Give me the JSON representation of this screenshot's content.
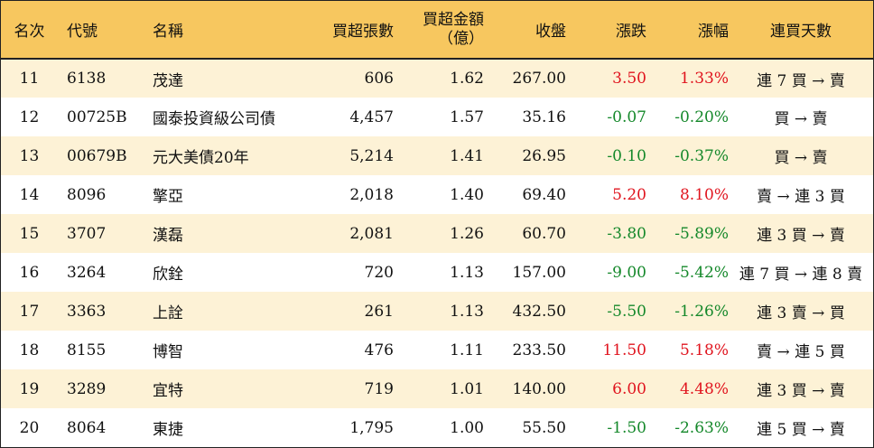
{
  "table": {
    "headers": {
      "rank": "名次",
      "code": "代號",
      "name": "名稱",
      "net_buy_volume": "買超張數",
      "net_buy_amount_line1": "買超金額",
      "net_buy_amount_line2": "（億）",
      "close": "收盤",
      "change": "漲跌",
      "change_pct": "漲幅",
      "consecutive_days": "連買天數"
    },
    "colors": {
      "header_bg": "#f7c75f",
      "odd_row_bg": "#fdf2d6",
      "up": "#e0141e",
      "down": "#14882a"
    },
    "rows": [
      {
        "rank": "11",
        "code": "6138",
        "name": "茂達",
        "volume": "606",
        "amount": "1.62",
        "close": "267.00",
        "change": "3.50",
        "pct": "1.33%",
        "days": "連 7 買 → 賣",
        "dir": "pos"
      },
      {
        "rank": "12",
        "code": "00725B",
        "name": "國泰投資級公司債",
        "volume": "4,457",
        "amount": "1.57",
        "close": "35.16",
        "change": "-0.07",
        "pct": "-0.20%",
        "days": "買 → 賣",
        "dir": "neg"
      },
      {
        "rank": "13",
        "code": "00679B",
        "name": "元大美債20年",
        "volume": "5,214",
        "amount": "1.41",
        "close": "26.95",
        "change": "-0.10",
        "pct": "-0.37%",
        "days": "買 → 賣",
        "dir": "neg"
      },
      {
        "rank": "14",
        "code": "8096",
        "name": "擎亞",
        "volume": "2,018",
        "amount": "1.40",
        "close": "69.40",
        "change": "5.20",
        "pct": "8.10%",
        "days": "賣 → 連 3 買",
        "dir": "pos"
      },
      {
        "rank": "15",
        "code": "3707",
        "name": "漢磊",
        "volume": "2,081",
        "amount": "1.26",
        "close": "60.70",
        "change": "-3.80",
        "pct": "-5.89%",
        "days": "連 3 買 → 賣",
        "dir": "neg"
      },
      {
        "rank": "16",
        "code": "3264",
        "name": "欣銓",
        "volume": "720",
        "amount": "1.13",
        "close": "157.00",
        "change": "-9.00",
        "pct": "-5.42%",
        "days": "連 7 買 → 連 8 賣",
        "dir": "neg"
      },
      {
        "rank": "17",
        "code": "3363",
        "name": "上詮",
        "volume": "261",
        "amount": "1.13",
        "close": "432.50",
        "change": "-5.50",
        "pct": "-1.26%",
        "days": "連 3 賣 → 買",
        "dir": "neg"
      },
      {
        "rank": "18",
        "code": "8155",
        "name": "博智",
        "volume": "476",
        "amount": "1.11",
        "close": "233.50",
        "change": "11.50",
        "pct": "5.18%",
        "days": "賣 → 連 5 買",
        "dir": "pos"
      },
      {
        "rank": "19",
        "code": "3289",
        "name": "宜特",
        "volume": "719",
        "amount": "1.01",
        "close": "140.00",
        "change": "6.00",
        "pct": "4.48%",
        "days": "連 3 買 → 賣",
        "dir": "pos"
      },
      {
        "rank": "20",
        "code": "8064",
        "name": "東捷",
        "volume": "1,795",
        "amount": "1.00",
        "close": "55.50",
        "change": "-1.50",
        "pct": "-2.63%",
        "days": "連 5 買 → 賣",
        "dir": "neg"
      }
    ]
  }
}
